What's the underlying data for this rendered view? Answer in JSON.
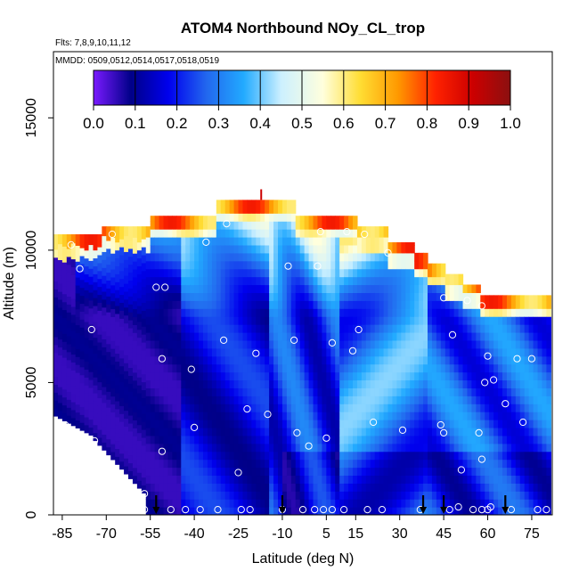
{
  "chart_data": {
    "type": "heatmap",
    "title": "ATOM4 Northbound NOy_CL_trop",
    "annotations": [
      "Flts: 7,8,9,10,11,12",
      "MMDD: 0509,0512,0514,0517,0518,0519"
    ],
    "xlabel": "Latitude (deg N)",
    "ylabel": "Altitude (m)",
    "xlim": [
      -88,
      82
    ],
    "ylim": [
      0,
      17500
    ],
    "xticks": [
      -85,
      -70,
      -55,
      -40,
      -25,
      -10,
      5,
      15,
      30,
      45,
      60,
      75
    ],
    "xtick_labels": [
      "-85",
      "-70",
      "-55",
      "-40",
      "-25",
      "-10",
      "5",
      "15",
      "30",
      "45",
      "60",
      "75"
    ],
    "yticks": [
      0,
      5000,
      10000,
      15000
    ],
    "ytick_labels": [
      "0",
      "5000",
      "10000",
      "15000"
    ],
    "colorbar": {
      "range": [
        0,
        1
      ],
      "ticks": [
        0,
        0.1,
        0.2,
        0.3,
        0.4,
        0.5,
        0.6,
        0.7,
        0.8,
        0.9,
        1.0
      ],
      "tick_labels": [
        "0.0",
        "0.1",
        "0.2",
        "0.3",
        "0.4",
        "0.5",
        "0.6",
        "0.7",
        "0.8",
        "0.9",
        "1.0"
      ],
      "colors": [
        "#7a1aff",
        "#000088",
        "#0000ee",
        "#2266ee",
        "#22aaff",
        "#ccf0ff",
        "#ffffdd",
        "#ffdd33",
        "#ff9900",
        "#ff2200",
        "#cc0000",
        "#8b1010"
      ]
    },
    "grid": false,
    "sample_points": [
      [
        -84,
        0.2
      ],
      [
        -84,
        3.4
      ],
      [
        -82,
        10.2
      ],
      [
        -79,
        9.3
      ],
      [
        -75,
        7.0
      ],
      [
        -74,
        2.8
      ],
      [
        -71,
        1.3
      ],
      [
        -68,
        10.6
      ],
      [
        -57,
        0.8
      ],
      [
        -57,
        0.2
      ],
      [
        -53,
        8.6
      ],
      [
        -51,
        5.9
      ],
      [
        -50,
        8.6
      ],
      [
        -51,
        2.4
      ],
      [
        -48,
        0.2
      ],
      [
        -43,
        0.2
      ],
      [
        -41,
        5.5
      ],
      [
        -40,
        3.3
      ],
      [
        -38,
        0.2
      ],
      [
        -36,
        10.3
      ],
      [
        -32,
        0.2
      ],
      [
        -30,
        6.6
      ],
      [
        -29,
        11.0
      ],
      [
        -25,
        1.6
      ],
      [
        -24,
        0.2
      ],
      [
        -22,
        4.0
      ],
      [
        -21,
        0.2
      ],
      [
        -19,
        6.1
      ],
      [
        -15,
        3.8
      ],
      [
        -10,
        0.2
      ],
      [
        -8,
        9.4
      ],
      [
        -6,
        6.6
      ],
      [
        -5,
        3.1
      ],
      [
        -3,
        0.2
      ],
      [
        -1,
        2.6
      ],
      [
        1,
        0.2
      ],
      [
        2,
        9.4
      ],
      [
        3,
        10.7
      ],
      [
        4,
        0.2
      ],
      [
        5,
        2.9
      ],
      [
        7,
        0.2
      ],
      [
        7,
        6.5
      ],
      [
        11,
        0.2
      ],
      [
        12,
        10.7
      ],
      [
        14,
        6.2
      ],
      [
        16,
        7.0
      ],
      [
        18,
        10.6
      ],
      [
        19,
        0.2
      ],
      [
        21,
        3.5
      ],
      [
        24,
        0.2
      ],
      [
        26,
        9.9
      ],
      [
        31,
        3.2
      ],
      [
        37,
        0.2
      ],
      [
        44,
        3.4
      ],
      [
        45,
        3.1
      ],
      [
        45,
        8.2
      ],
      [
        47,
        0.2
      ],
      [
        48,
        6.8
      ],
      [
        50,
        0.3
      ],
      [
        51,
        1.7
      ],
      [
        53,
        8.1
      ],
      [
        55,
        0.2
      ],
      [
        57,
        3.1
      ],
      [
        58,
        0.2
      ],
      [
        58,
        2.1
      ],
      [
        58,
        7.9
      ],
      [
        59,
        5.0
      ],
      [
        60,
        6.0
      ],
      [
        60,
        0.2
      ],
      [
        61,
        0.3
      ],
      [
        62,
        5.1
      ],
      [
        66,
        4.2
      ],
      [
        68,
        0.2
      ],
      [
        70,
        5.9
      ],
      [
        72,
        3.5
      ],
      [
        75,
        5.9
      ],
      [
        77,
        0.2
      ],
      [
        80,
        0.2
      ]
    ],
    "arrow_latitudes": [
      -53,
      -10,
      38,
      45,
      66
    ]
  }
}
